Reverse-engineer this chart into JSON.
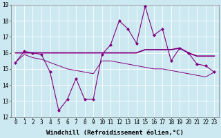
{
  "x": [
    0,
    1,
    2,
    3,
    4,
    5,
    6,
    7,
    8,
    9,
    10,
    11,
    12,
    13,
    14,
    15,
    16,
    17,
    18,
    19,
    20,
    21,
    22,
    23
  ],
  "line1_y": [
    15.4,
    16.1,
    16.0,
    15.9,
    14.8,
    12.4,
    13.1,
    14.4,
    13.1,
    13.1,
    15.9,
    16.5,
    18.0,
    17.5,
    16.6,
    18.9,
    17.1,
    17.5,
    15.5,
    16.3,
    16.0,
    15.3,
    15.2,
    14.8
  ],
  "line2_y": [
    16.0,
    16.0,
    16.0,
    16.0,
    16.0,
    16.0,
    16.0,
    16.0,
    16.0,
    16.0,
    16.0,
    16.0,
    16.0,
    16.0,
    16.0,
    16.2,
    16.2,
    16.2,
    16.2,
    16.3,
    16.0,
    15.8,
    15.8,
    15.8
  ],
  "line3_y": [
    15.4,
    15.9,
    15.7,
    15.6,
    15.4,
    15.2,
    15.0,
    14.9,
    14.8,
    14.7,
    15.5,
    15.5,
    15.4,
    15.3,
    15.2,
    15.1,
    15.0,
    15.0,
    14.9,
    14.8,
    14.7,
    14.6,
    14.5,
    14.8
  ],
  "bg_color": "#cce8f0",
  "grid_color": "#aaccdd",
  "ylim": [
    12,
    19
  ],
  "xlim_min": -0.5,
  "xlim_max": 23.5,
  "yticks": [
    12,
    13,
    14,
    15,
    16,
    17,
    18,
    19
  ],
  "xticks": [
    0,
    1,
    2,
    3,
    4,
    5,
    6,
    7,
    8,
    9,
    10,
    11,
    12,
    13,
    14,
    15,
    16,
    17,
    18,
    19,
    20,
    21,
    22,
    23
  ],
  "xlabel": "Windchill (Refroidissement éolien,°C)",
  "xlabel_fontsize": 6.5,
  "tick_fontsize": 5.5,
  "line_color": "#800080",
  "marker": "D",
  "markersize": 2.0
}
